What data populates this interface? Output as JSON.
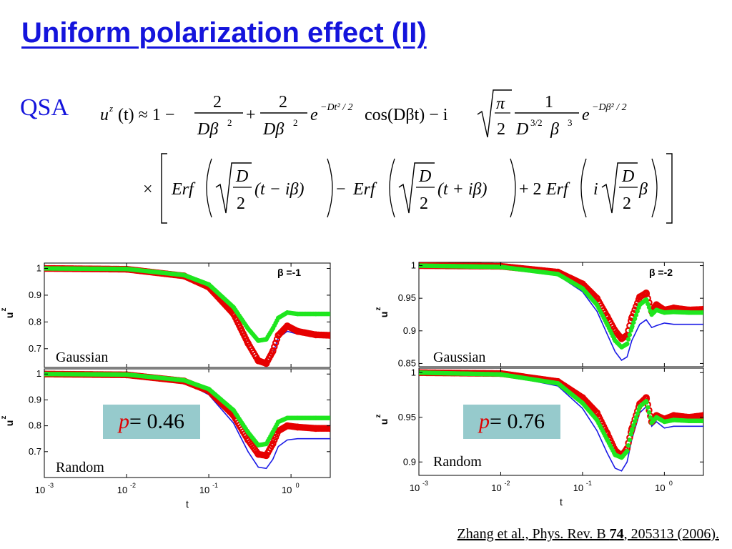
{
  "slide": {
    "title": "Uniform polarization effect (II)",
    "qsa_label": "QSA",
    "reference": {
      "prefix": "Zhang et al., Phys. Rev. B ",
      "volume": "74",
      "suffix": ", 205313 (2006)."
    },
    "p_left": {
      "var": "p",
      "eq": " = 0.46"
    },
    "p_right": {
      "var": "p",
      "eq": " = 0.76"
    }
  },
  "equation": {
    "lhs": "u",
    "lhs_sup": "z",
    "lhs_arg": "(t) ≈ 1 −",
    "frac1_num": "2",
    "frac1_den": "Dβ",
    "frac1_den_sup": "2",
    "plus": "+",
    "frac2_num": "2",
    "frac2_den": "Dβ",
    "frac2_den_sup": "2",
    "exp1_base": "e",
    "exp1_sup": "−Dt² / 2",
    "cos_term": "cos(Dβt) − i",
    "sqrt1_num": "π",
    "sqrt1_den": "2",
    "frac3_num": "1",
    "frac3_den": "D",
    "frac3_den_sup1": "3/2",
    "frac3_den_b": "β",
    "frac3_den_sup2": "3",
    "exp2_base": "e",
    "exp2_sup": "−Dβ² / 2",
    "times": "×",
    "erf1": "Erf",
    "sqrtD_num": "D",
    "sqrtD_den": "2",
    "erf1_arg": "(t − iβ)",
    "minus": "−",
    "erf2": "Erf",
    "erf2_arg": "(t + iβ)",
    "plus2": "+ 2",
    "erf3": "Erf",
    "erf3_i": "i",
    "erf3_beta": "β"
  },
  "chart_data": [
    {
      "type": "line",
      "panel": "left-top",
      "annotation": "β =-1",
      "label": "Gaussian",
      "ylabel": "u",
      "ylabel_sup": "z",
      "xlabel": "",
      "xscale": "log",
      "xlim": [
        0.001,
        3
      ],
      "ylim": [
        0.63,
        1.02
      ],
      "yticks": [
        0.7,
        0.8,
        0.9,
        1
      ],
      "ytick_labels": [
        "0.7",
        "0.8",
        "0.9",
        "1"
      ],
      "xticks": [],
      "series": [
        {
          "color": "#1a1ae6",
          "style": "line",
          "x": [
            0.001,
            0.01,
            0.05,
            0.1,
            0.2,
            0.3,
            0.4,
            0.5,
            0.6,
            0.7,
            0.9,
            1.2,
            2,
            3
          ],
          "y": [
            1.0,
            0.997,
            0.97,
            0.925,
            0.82,
            0.71,
            0.645,
            0.637,
            0.68,
            0.74,
            0.765,
            0.755,
            0.75,
            0.75
          ]
        },
        {
          "color": "#e60000",
          "style": "markers",
          "x": [
            0.001,
            0.01,
            0.05,
            0.1,
            0.2,
            0.3,
            0.4,
            0.5,
            0.6,
            0.7,
            0.9,
            1.2,
            2,
            3
          ],
          "y": [
            1.0,
            0.997,
            0.972,
            0.93,
            0.83,
            0.72,
            0.655,
            0.645,
            0.69,
            0.75,
            0.785,
            0.765,
            0.752,
            0.75
          ]
        },
        {
          "color": "#1ee61e",
          "style": "markers",
          "x": [
            0.001,
            0.01,
            0.05,
            0.1,
            0.2,
            0.3,
            0.4,
            0.5,
            0.6,
            0.7,
            0.9,
            1.2,
            2,
            3
          ],
          "y": [
            1.0,
            0.998,
            0.975,
            0.94,
            0.855,
            0.775,
            0.73,
            0.735,
            0.775,
            0.815,
            0.835,
            0.83,
            0.83,
            0.83
          ]
        }
      ]
    },
    {
      "type": "line",
      "panel": "left-bottom",
      "label": "Random",
      "ylabel": "u",
      "ylabel_sup": "z",
      "xlabel": "t",
      "xscale": "log",
      "xlim": [
        0.001,
        3
      ],
      "ylim": [
        0.6,
        1.02
      ],
      "yticks": [
        0.7,
        0.8,
        0.9,
        1
      ],
      "ytick_labels": [
        "0.7",
        "0.8",
        "0.9",
        "1"
      ],
      "xticks": [
        0.001,
        0.01,
        0.1,
        1
      ],
      "xtick_labels": [
        {
          "b": "10",
          "e": "-3"
        },
        {
          "b": "10",
          "e": "-2"
        },
        {
          "b": "10",
          "e": "-1"
        },
        {
          "b": "10",
          "e": "0"
        }
      ],
      "series": [
        {
          "color": "#1a1ae6",
          "style": "line",
          "x": [
            0.001,
            0.01,
            0.05,
            0.1,
            0.2,
            0.3,
            0.4,
            0.5,
            0.6,
            0.7,
            0.9,
            1.2,
            2,
            3
          ],
          "y": [
            1.0,
            0.997,
            0.97,
            0.92,
            0.81,
            0.7,
            0.64,
            0.635,
            0.67,
            0.72,
            0.745,
            0.75,
            0.75,
            0.75
          ]
        },
        {
          "color": "#e60000",
          "style": "markers",
          "x": [
            0.001,
            0.01,
            0.05,
            0.1,
            0.2,
            0.3,
            0.4,
            0.5,
            0.6,
            0.7,
            0.9,
            1.2,
            2,
            3
          ],
          "y": [
            1.0,
            0.997,
            0.973,
            0.935,
            0.84,
            0.745,
            0.69,
            0.685,
            0.73,
            0.78,
            0.8,
            0.795,
            0.79,
            0.79
          ]
        },
        {
          "color": "#1ee61e",
          "style": "markers",
          "x": [
            0.001,
            0.01,
            0.05,
            0.1,
            0.2,
            0.3,
            0.4,
            0.5,
            0.6,
            0.7,
            0.9,
            1.2,
            2,
            3
          ],
          "y": [
            1.0,
            0.998,
            0.976,
            0.942,
            0.86,
            0.775,
            0.725,
            0.73,
            0.775,
            0.815,
            0.83,
            0.83,
            0.83,
            0.83
          ]
        }
      ]
    },
    {
      "type": "line",
      "panel": "right-top",
      "annotation": "β =-2",
      "label": "Gaussian",
      "ylabel": "u",
      "ylabel_sup": "z",
      "xlabel": "",
      "xscale": "log",
      "xlim": [
        0.001,
        3
      ],
      "ylim": [
        0.845,
        1.005
      ],
      "yticks": [
        0.85,
        0.9,
        0.95,
        1
      ],
      "ytick_labels": [
        "0.85",
        "0.9",
        "0.95",
        "1"
      ],
      "xticks": [],
      "series": [
        {
          "color": "#1a1ae6",
          "style": "line",
          "x": [
            0.001,
            0.01,
            0.05,
            0.1,
            0.15,
            0.2,
            0.25,
            0.3,
            0.35,
            0.4,
            0.5,
            0.6,
            0.7,
            0.8,
            1.0,
            1.3,
            2,
            3
          ],
          "y": [
            1.0,
            0.998,
            0.985,
            0.96,
            0.93,
            0.895,
            0.868,
            0.855,
            0.86,
            0.885,
            0.91,
            0.917,
            0.905,
            0.908,
            0.912,
            0.91,
            0.91,
            0.91
          ]
        },
        {
          "color": "#e60000",
          "style": "markers",
          "x": [
            0.001,
            0.01,
            0.05,
            0.1,
            0.15,
            0.2,
            0.25,
            0.3,
            0.35,
            0.4,
            0.5,
            0.6,
            0.7,
            0.8,
            1.0,
            1.3,
            2,
            3
          ],
          "y": [
            1.0,
            0.999,
            0.99,
            0.972,
            0.95,
            0.922,
            0.9,
            0.888,
            0.893,
            0.92,
            0.952,
            0.958,
            0.93,
            0.94,
            0.932,
            0.935,
            0.932,
            0.933
          ]
        },
        {
          "color": "#1ee61e",
          "style": "markers",
          "x": [
            0.001,
            0.01,
            0.05,
            0.1,
            0.15,
            0.2,
            0.25,
            0.3,
            0.35,
            0.4,
            0.5,
            0.6,
            0.7,
            0.8,
            1.0,
            1.3,
            2,
            3
          ],
          "y": [
            1.0,
            0.998,
            0.987,
            0.965,
            0.94,
            0.91,
            0.885,
            0.875,
            0.88,
            0.905,
            0.94,
            0.948,
            0.925,
            0.932,
            0.928,
            0.929,
            0.928,
            0.928
          ]
        }
      ]
    },
    {
      "type": "line",
      "panel": "right-bottom",
      "label": "Random",
      "ylabel": "u",
      "ylabel_sup": "z",
      "xlabel": "t",
      "xscale": "log",
      "xlim": [
        0.001,
        3
      ],
      "ylim": [
        0.885,
        1.005
      ],
      "yticks": [
        0.9,
        0.95,
        1
      ],
      "ytick_labels": [
        "0.9",
        "0.95",
        "1"
      ],
      "xticks": [
        0.001,
        0.01,
        0.1,
        1
      ],
      "xtick_labels": [
        {
          "b": "10",
          "e": "-3"
        },
        {
          "b": "10",
          "e": "-2"
        },
        {
          "b": "10",
          "e": "-1"
        },
        {
          "b": "10",
          "e": "0"
        }
      ],
      "series": [
        {
          "color": "#1a1ae6",
          "style": "line",
          "x": [
            0.001,
            0.01,
            0.05,
            0.1,
            0.15,
            0.2,
            0.25,
            0.3,
            0.35,
            0.4,
            0.5,
            0.6,
            0.7,
            0.8,
            1.0,
            1.3,
            2,
            3
          ],
          "y": [
            1.0,
            0.998,
            0.985,
            0.96,
            0.935,
            0.91,
            0.893,
            0.89,
            0.9,
            0.925,
            0.955,
            0.962,
            0.94,
            0.945,
            0.938,
            0.94,
            0.94,
            0.94
          ]
        },
        {
          "color": "#e60000",
          "style": "markers",
          "x": [
            0.001,
            0.01,
            0.05,
            0.1,
            0.15,
            0.2,
            0.25,
            0.3,
            0.35,
            0.4,
            0.5,
            0.6,
            0.7,
            0.8,
            1.0,
            1.3,
            2,
            3
          ],
          "y": [
            1.0,
            0.999,
            0.99,
            0.972,
            0.955,
            0.932,
            0.913,
            0.907,
            0.915,
            0.937,
            0.965,
            0.972,
            0.945,
            0.952,
            0.948,
            0.952,
            0.95,
            0.952
          ]
        },
        {
          "color": "#1ee61e",
          "style": "markers",
          "x": [
            0.001,
            0.01,
            0.05,
            0.1,
            0.15,
            0.2,
            0.25,
            0.3,
            0.35,
            0.4,
            0.5,
            0.6,
            0.7,
            0.8,
            1.0,
            1.3,
            2,
            3
          ],
          "y": [
            1.0,
            0.998,
            0.988,
            0.966,
            0.947,
            0.925,
            0.908,
            0.905,
            0.912,
            0.935,
            0.962,
            0.968,
            0.944,
            0.95,
            0.945,
            0.947,
            0.946,
            0.946
          ]
        }
      ]
    }
  ]
}
